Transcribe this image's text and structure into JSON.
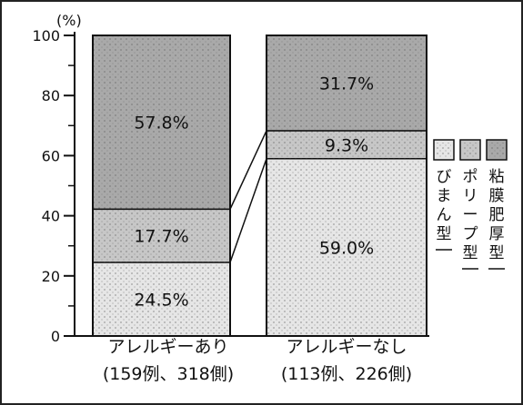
{
  "chart_data": {
    "type": "bar",
    "stacked": true,
    "y_unit_label": "(%)",
    "ylim": [
      0,
      100
    ],
    "y_ticks": [
      "0",
      "20",
      "40",
      "60",
      "80",
      "100"
    ],
    "categories": [
      {
        "line1": "アレルギーあり",
        "line2": "(159例、318側)"
      },
      {
        "line1": "アレルギーなし",
        "line2": "(113例、226側)"
      }
    ],
    "series": [
      {
        "name": "びまん型",
        "values": [
          24.5,
          59.0
        ],
        "labels": [
          "24.5%",
          "59.0%"
        ],
        "color": "#e6e6e6"
      },
      {
        "name": "ポリープ型",
        "values": [
          17.7,
          9.3
        ],
        "labels": [
          "17.7%",
          "9.3%"
        ],
        "color": "#c7c7c7"
      },
      {
        "name": "粘膜肥厚型",
        "values": [
          57.8,
          31.7
        ],
        "labels": [
          "57.8%",
          "31.7%"
        ],
        "color": "#a9a9a9"
      }
    ],
    "grid": false,
    "legend_position": "right"
  }
}
